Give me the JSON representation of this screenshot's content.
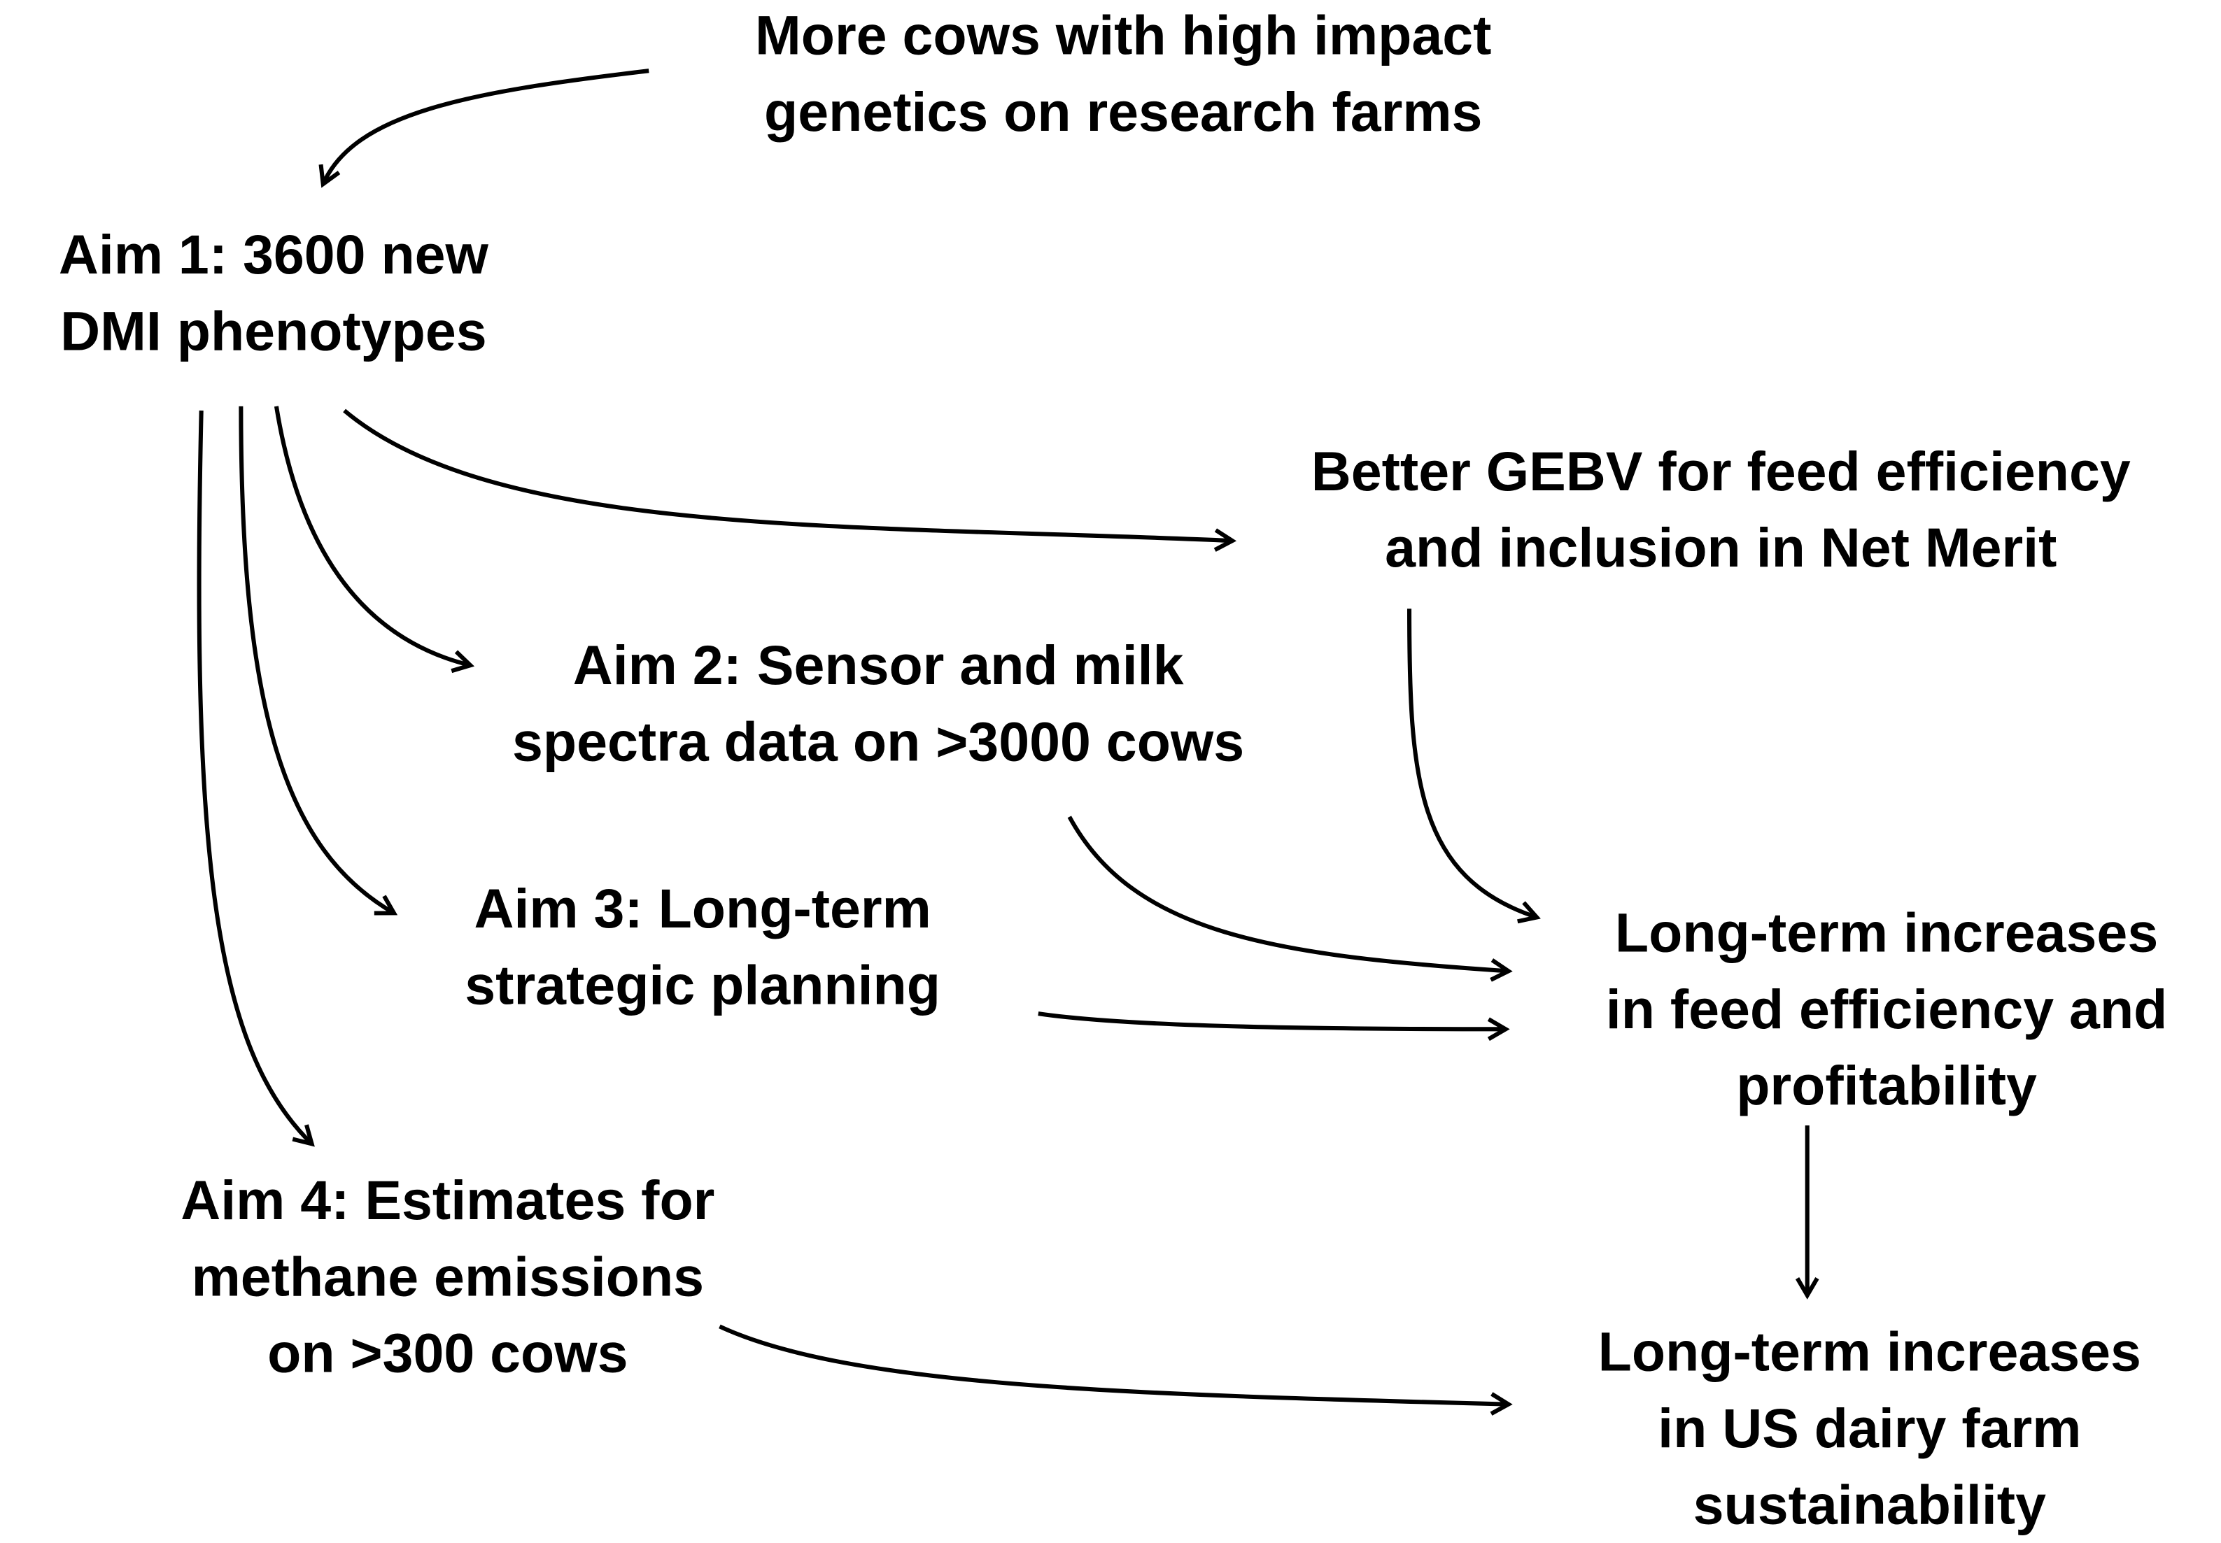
{
  "nodes": [
    {
      "lines": [
        "More cows with high impact",
        "genetics on research farms"
      ]
    },
    {
      "lines": [
        "Aim 1: 3600 new",
        "DMI phenotypes"
      ]
    },
    {
      "lines": [
        "Better GEBV for feed efficiency",
        "and inclusion in Net Merit"
      ]
    },
    {
      "lines": [
        "Aim 2: Sensor and milk",
        "spectra data on >3000 cows"
      ]
    },
    {
      "lines": [
        "Aim 3: Long-term",
        "strategic planning"
      ]
    },
    {
      "lines": [
        "Long-term increases",
        "in feed efficiency and",
        "profitability"
      ]
    },
    {
      "lines": [
        "Aim 4: Estimates for",
        "methane emissions",
        "on >300 cows"
      ]
    },
    {
      "lines": [
        "Long-term increases",
        "in US dairy farm",
        "sustainability"
      ]
    }
  ]
}
